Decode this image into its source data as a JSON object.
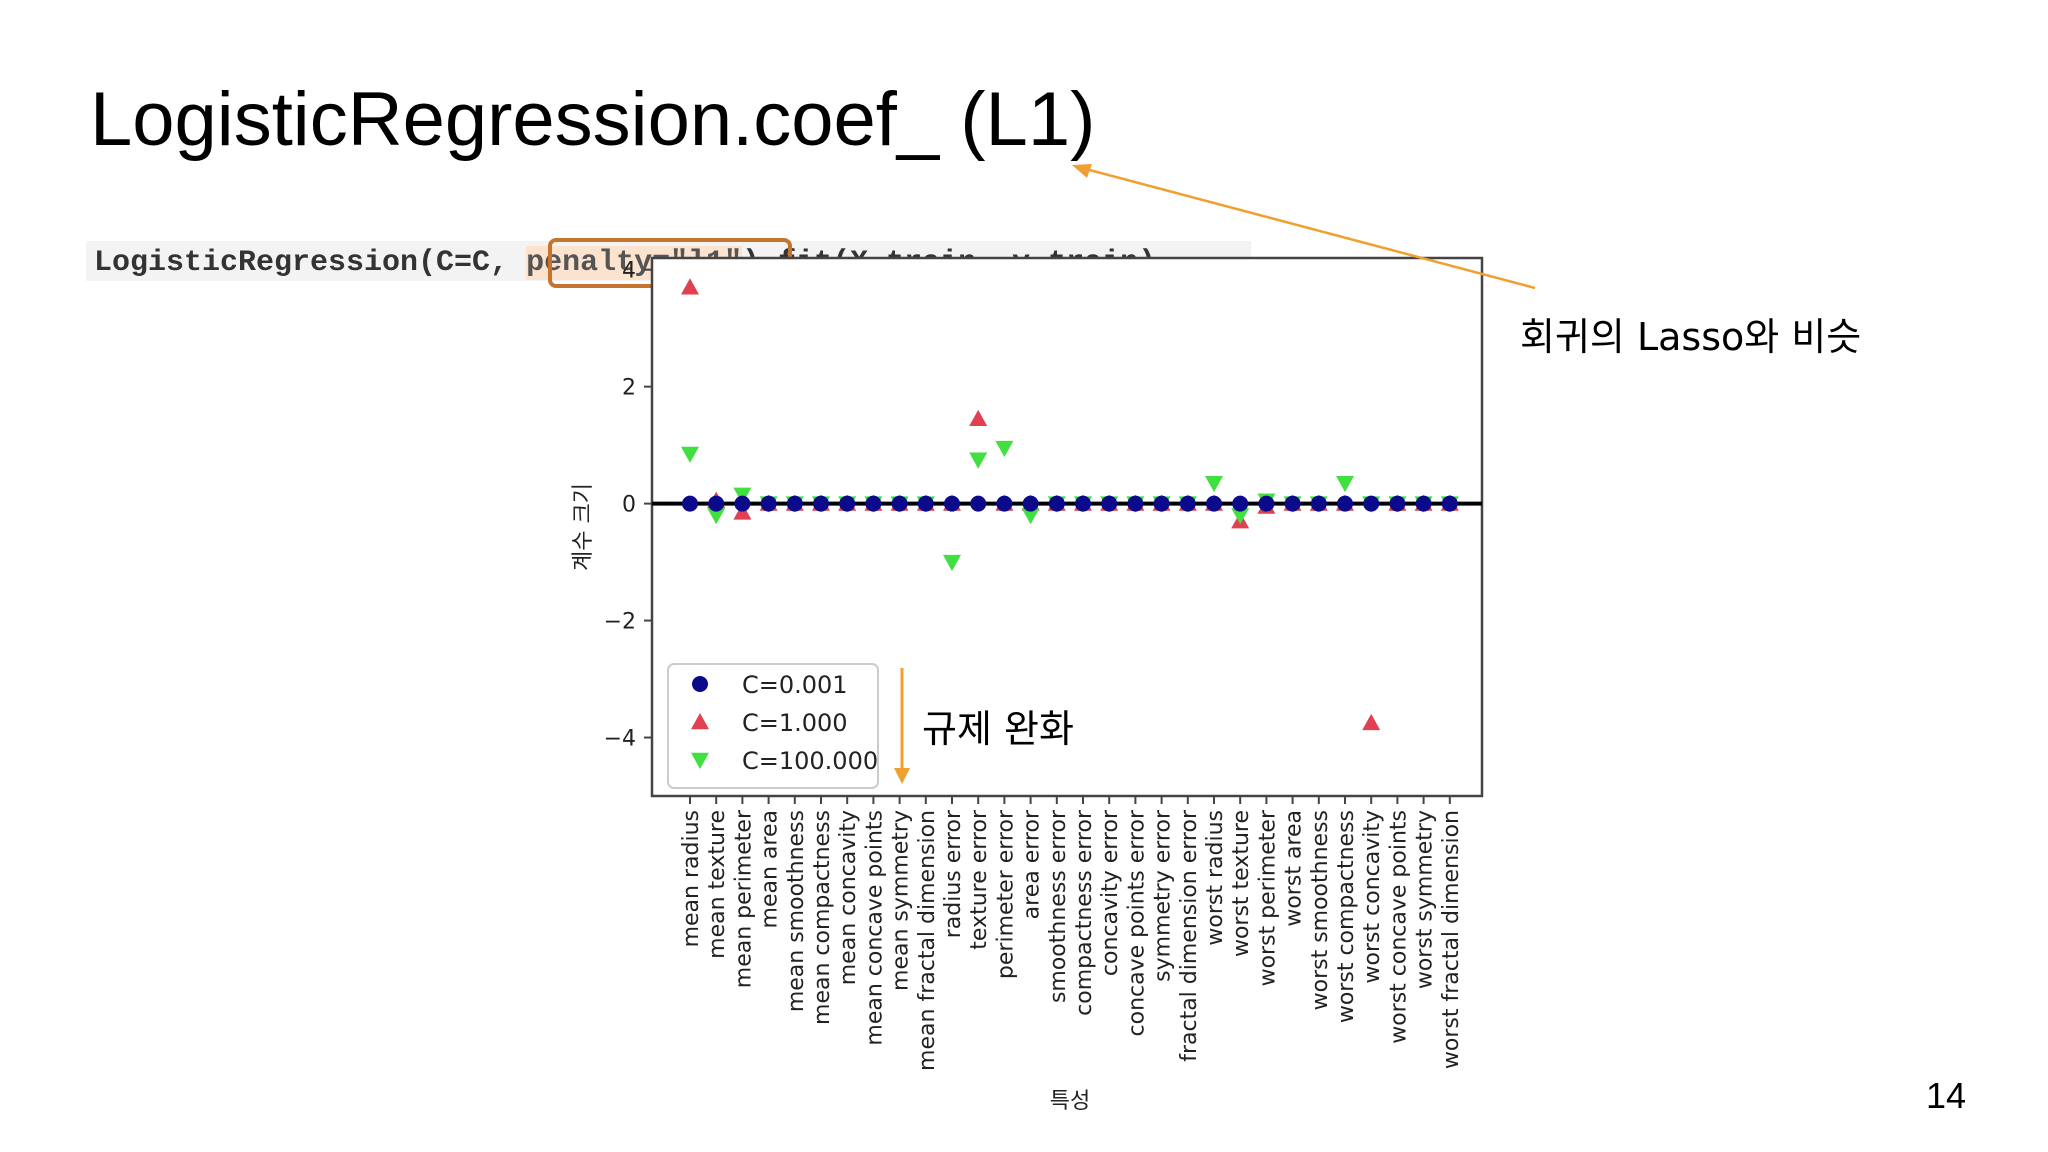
{
  "slide": {
    "title": "LogisticRegression.coef_ (L1)",
    "code_prefix": "LogisticRegression(C=C, ",
    "code_highlight": "penalty=\"l1\"",
    "code_suffix": ").fit(X_train, y_train)",
    "annotation_lasso": "회귀의 Lasso와 비슷",
    "annotation_regularization": "규제 완화",
    "page_number": "14",
    "arrow_color": "#f0a030",
    "highlight_border_color": "#c4742c"
  },
  "chart_data": {
    "type": "scatter",
    "xlabel": "특성",
    "ylabel": "계수 크기",
    "ylim": [
      -5,
      4.2
    ],
    "yticks": [
      4,
      2,
      0,
      -2,
      -4
    ],
    "grid": false,
    "legend_position": "lower-left",
    "categories": [
      "mean radius",
      "mean texture",
      "mean perimeter",
      "mean area",
      "mean smoothness",
      "mean compactness",
      "mean concavity",
      "mean concave points",
      "mean symmetry",
      "mean fractal dimension",
      "radius error",
      "texture error",
      "perimeter error",
      "area error",
      "smoothness error",
      "compactness error",
      "concavity error",
      "concave points error",
      "symmetry error",
      "fractal dimension error",
      "worst radius",
      "worst texture",
      "worst perimeter",
      "worst area",
      "worst smoothness",
      "worst compactness",
      "worst concavity",
      "worst concave points",
      "worst symmetry",
      "worst fractal dimension"
    ],
    "series": [
      {
        "name": "C=0.001",
        "marker": "circle",
        "color": "#0a0a8a",
        "values": [
          0,
          0,
          0,
          0,
          0,
          0,
          0,
          0,
          0,
          0,
          0,
          0,
          0,
          0,
          0,
          0,
          0,
          0,
          0,
          0,
          0,
          0,
          0,
          0,
          0,
          0,
          0,
          0,
          0,
          0
        ]
      },
      {
        "name": "C=1.000",
        "marker": "triangle-up",
        "color": "#e04050",
        "values": [
          3.7,
          0.05,
          -0.15,
          0,
          0,
          0,
          0,
          0,
          0,
          0,
          0,
          1.45,
          0,
          0,
          0,
          0,
          0,
          0,
          0,
          0,
          0,
          -0.3,
          -0.05,
          0,
          0,
          0,
          -3.75,
          0,
          0,
          0
        ]
      },
      {
        "name": "C=100.000",
        "marker": "triangle-down",
        "color": "#40e040",
        "values": [
          0.85,
          -0.2,
          0.15,
          0,
          0,
          0,
          0,
          0,
          0,
          0,
          -1.0,
          0.75,
          0.95,
          -0.2,
          0,
          0,
          0,
          0,
          0,
          0,
          0.35,
          -0.2,
          0.05,
          0,
          0,
          0.35,
          0,
          0,
          0,
          0
        ]
      }
    ]
  }
}
